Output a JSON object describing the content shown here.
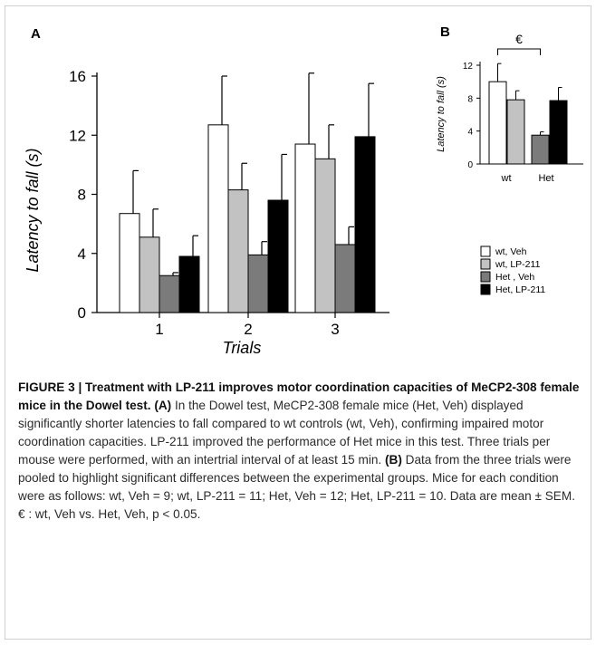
{
  "panel_labels": {
    "a": "A",
    "b": "B"
  },
  "legend": {
    "items": [
      {
        "label": "wt, Veh",
        "color": "#ffffff"
      },
      {
        "label": "wt, LP-211",
        "color": "#c2c2c2"
      },
      {
        "label": "Het , Veh",
        "color": "#7b7b7b"
      },
      {
        "label": "Het, LP-211",
        "color": "#000000"
      }
    ]
  },
  "significance_marker": "€",
  "chart_data": [
    {
      "panel": "A",
      "type": "bar",
      "categories": [
        "1",
        "2",
        "3"
      ],
      "xlabel": "Trials",
      "ylabel": "Latency to fall (s)",
      "ylim": [
        0,
        16
      ],
      "yticks": [
        0,
        4,
        8,
        12,
        16
      ],
      "series": [
        {
          "name": "wt, Veh",
          "color": "#ffffff",
          "values": [
            6.7,
            12.7,
            11.4
          ],
          "errors": [
            2.9,
            3.3,
            4.8
          ]
        },
        {
          "name": "wt, LP-211",
          "color": "#c2c2c2",
          "values": [
            5.1,
            8.3,
            10.4
          ],
          "errors": [
            1.9,
            1.8,
            2.3
          ]
        },
        {
          "name": "Het , Veh",
          "color": "#7b7b7b",
          "values": [
            2.5,
            3.9,
            4.6
          ],
          "errors": [
            0.2,
            0.9,
            1.2
          ]
        },
        {
          "name": "Het, LP-211",
          "color": "#000000",
          "values": [
            3.8,
            7.6,
            11.9
          ],
          "errors": [
            1.4,
            3.1,
            3.6
          ]
        }
      ]
    },
    {
      "panel": "B",
      "type": "bar",
      "categories": [
        "wt",
        "Het"
      ],
      "xlabel": "",
      "ylabel": "Latency to fall (s)",
      "ylim": [
        0,
        12
      ],
      "yticks": [
        0,
        4,
        8,
        12
      ],
      "bars": [
        {
          "group": "wt",
          "name": "wt, Veh",
          "color": "#ffffff",
          "value": 10.0,
          "error": 2.2
        },
        {
          "group": "wt",
          "name": "wt, LP-211",
          "color": "#c2c2c2",
          "value": 7.8,
          "error": 1.1
        },
        {
          "group": "Het",
          "name": "Het , Veh",
          "color": "#7b7b7b",
          "value": 3.5,
          "error": 0.4
        },
        {
          "group": "Het",
          "name": "Het, LP-211",
          "color": "#000000",
          "value": 7.7,
          "error": 1.6
        }
      ],
      "annotation": {
        "text": "€",
        "from": "wt, Veh",
        "to": "Het , Veh"
      }
    }
  ],
  "caption": {
    "heading": "FIGURE 3 | Treatment with LP-211 improves motor coordination capacities of MeCP2-308 female mice in the Dowel test.",
    "part_a_label": "(A)",
    "part_a_text": "In the Dowel test, MeCP2-308 female mice (Het, Veh) displayed significantly shorter latencies to fall compared to wt controls (wt, Veh), confirming impaired motor coordination capacities. LP-211 improved the performance of Het mice in this test. Three trials per mouse were performed, with an intertrial interval of at least 15 min.",
    "part_b_label": "(B)",
    "part_b_text": "Data from the three trials were pooled to highlight significant differences between the experimental groups. Mice for each condition were as follows: wt, Veh = 9; wt, LP-211 = 11; Het, Veh = 12; Het, LP-211 = 10. Data are mean ± SEM. € : wt, Veh vs. Het, Veh, p < 0.05."
  }
}
